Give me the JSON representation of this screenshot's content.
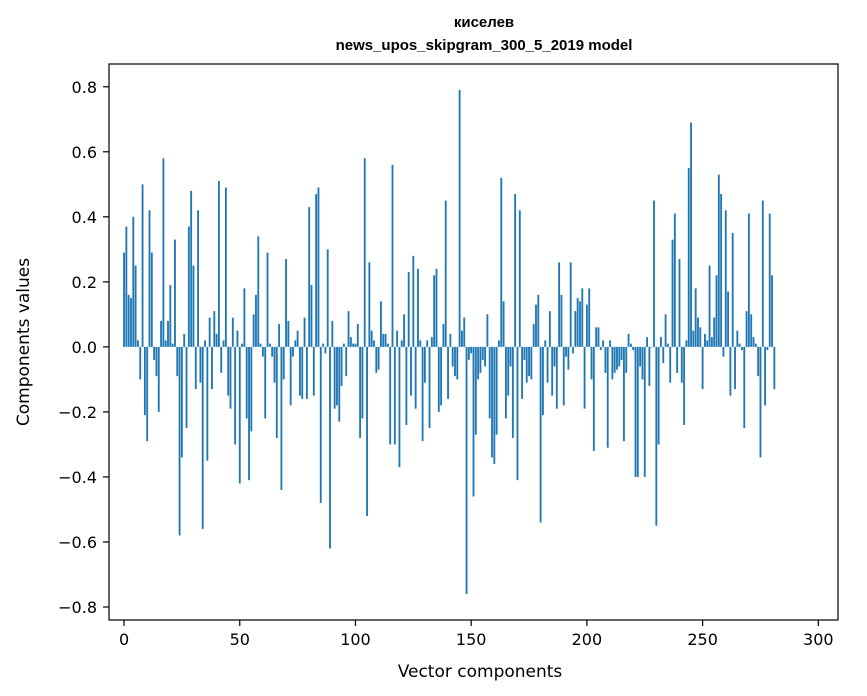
{
  "chart_data": {
    "type": "bar",
    "title": "киселев",
    "subtitle": "news_upos_skipgram_300_5_2019 model",
    "xlabel": "Vector components",
    "ylabel": "Components values",
    "xlim": [
      -6.5,
      308.5
    ],
    "ylim": [
      -0.84,
      0.87
    ],
    "xticks": [
      0,
      50,
      100,
      150,
      200,
      250,
      300
    ],
    "yticks": [
      -0.8,
      -0.6,
      -0.4,
      -0.2,
      0.0,
      0.2,
      0.4,
      0.6,
      0.8
    ],
    "xtick_labels": [
      "0",
      "50",
      "100",
      "150",
      "200",
      "250",
      "300"
    ],
    "ytick_labels": [
      "−0.8",
      "−0.6",
      "−0.4",
      "−0.2",
      "0.0",
      "0.2",
      "0.4",
      "0.6",
      "0.8"
    ],
    "bar_color": "#1f77b4",
    "grid": false,
    "values": [
      0.29,
      0.37,
      0.16,
      0.15,
      0.4,
      0.25,
      0.02,
      -0.1,
      0.5,
      -0.21,
      -0.29,
      0.42,
      0.29,
      -0.04,
      -0.09,
      -0.2,
      0.08,
      0.58,
      0.02,
      0.08,
      0.19,
      0.01,
      0.33,
      -0.09,
      -0.58,
      -0.34,
      0.04,
      -0.25,
      0.37,
      0.48,
      0.25,
      -0.13,
      0.42,
      -0.11,
      -0.56,
      0.02,
      -0.35,
      0.09,
      -0.13,
      0.11,
      0.04,
      0.51,
      -0.08,
      0.02,
      0.49,
      -0.15,
      -0.19,
      0.09,
      -0.3,
      0.05,
      -0.42,
      0.01,
      0.18,
      -0.22,
      -0.41,
      -0.26,
      0.1,
      0.16,
      0.34,
      0.01,
      -0.03,
      -0.22,
      0.29,
      0.01,
      -0.03,
      -0.11,
      -0.28,
      0.07,
      -0.44,
      -0.1,
      0.27,
      0.08,
      -0.18,
      -0.03,
      0.02,
      0.05,
      -0.15,
      -0.16,
      0.09,
      -0.16,
      0.43,
      0.19,
      -0.15,
      0.47,
      0.49,
      -0.48,
      0.01,
      -0.02,
      0.3,
      -0.62,
      0.08,
      -0.19,
      -0.18,
      -0.23,
      -0.12,
      0.01,
      -0.09,
      0.11,
      0.03,
      0.01,
      0.01,
      0.07,
      -0.28,
      -0.22,
      0.58,
      -0.52,
      0.26,
      0.05,
      0.02,
      -0.08,
      -0.07,
      0.14,
      0.04,
      0.04,
      0.01,
      -0.3,
      0.56,
      -0.3,
      0.05,
      -0.37,
      0.02,
      0.1,
      -0.24,
      0.23,
      -0.15,
      0.28,
      -0.19,
      0.24,
      0.02,
      -0.29,
      -0.11,
      0.02,
      -0.25,
      0.03,
      0.22,
      0.24,
      -0.2,
      -0.18,
      0.07,
      0.45,
      -0.16,
      0.04,
      -0.06,
      -0.09,
      -0.1,
      0.79,
      0.05,
      0.09,
      -0.76,
      -0.04,
      -0.02,
      -0.46,
      -0.27,
      -0.1,
      -0.08,
      -0.04,
      -0.06,
      0.1,
      -0.22,
      -0.34,
      -0.36,
      -0.27,
      0.02,
      0.52,
      0.14,
      -0.22,
      -0.15,
      -0.06,
      -0.28,
      0.47,
      -0.41,
      0.42,
      -0.16,
      -0.04,
      -0.11,
      -0.09,
      -0.1,
      0.07,
      0.13,
      0.16,
      -0.54,
      -0.21,
      0.02,
      -0.11,
      0.11,
      -0.15,
      -0.06,
      -0.19,
      0.26,
      0.16,
      -0.18,
      -0.03,
      -0.07,
      0.26,
      -0.02,
      0.11,
      0.15,
      0.14,
      0.18,
      -0.19,
      0.13,
      0.18,
      -0.1,
      -0.32,
      0.06,
      0.06,
      -0.01,
      0.02,
      -0.08,
      -0.31,
      0.02,
      -0.1,
      -0.08,
      -0.07,
      -0.06,
      -0.04,
      -0.29,
      -0.08,
      0.04,
      0.01,
      -0.01,
      -0.4,
      -0.4,
      -0.06,
      -0.1,
      -0.4,
      0.03,
      -0.12,
      0.0,
      0.45,
      -0.55,
      -0.3,
      0.03,
      -0.05,
      0.1,
      0.01,
      -0.11,
      0.33,
      0.41,
      -0.08,
      0.27,
      -0.11,
      -0.24,
      0.02,
      0.55,
      0.69,
      0.05,
      0.18,
      0.09,
      0.06,
      -0.13,
      0.04,
      0.02,
      0.25,
      0.03,
      0.09,
      0.22,
      0.53,
      0.47,
      -0.03,
      0.42,
      0.17,
      -0.15,
      0.35,
      -0.13,
      0.05,
      0.01,
      -0.01,
      -0.25,
      0.11,
      0.41,
      0.1,
      0.03,
      0.01,
      -0.09,
      -0.34,
      0.45,
      -0.18,
      -0.01,
      0.41,
      0.22,
      -0.13
    ]
  }
}
